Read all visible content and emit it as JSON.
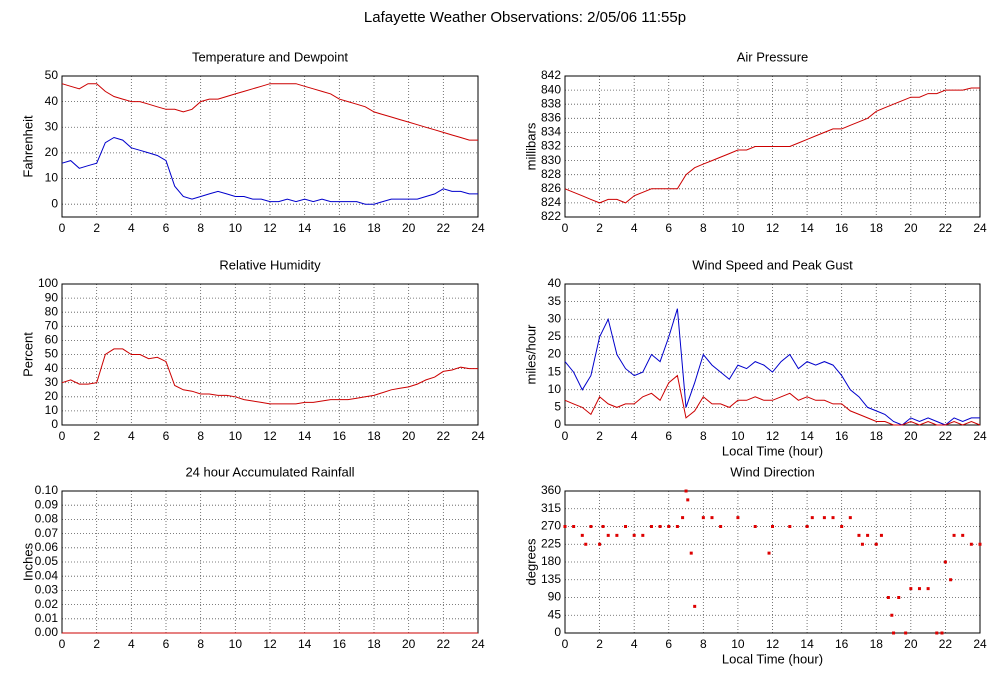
{
  "title": "Lafayette Weather Observations: 2/05/06 11:55p",
  "chart_data": [
    {
      "type": "line",
      "title": "Temperature and Dewpoint",
      "y_label": "Fahrenheit",
      "x": [
        0,
        0.5,
        1,
        1.5,
        2,
        2.5,
        3,
        3.5,
        4,
        4.5,
        5,
        5.5,
        6,
        6.5,
        7,
        7.5,
        8,
        8.5,
        9,
        9.5,
        10,
        10.5,
        11,
        11.5,
        12,
        12.5,
        13,
        13.5,
        14,
        14.5,
        15,
        15.5,
        16,
        16.5,
        17,
        17.5,
        18,
        18.5,
        19,
        19.5,
        20,
        20.5,
        21,
        21.5,
        22,
        22.5,
        23,
        23.5,
        24
      ],
      "series": [
        {
          "color": "#cc0000",
          "values": [
            47,
            46,
            45,
            47,
            47,
            44,
            42,
            41,
            40,
            40,
            39,
            38,
            37,
            37,
            36,
            37,
            40,
            41,
            41,
            42,
            43,
            44,
            45,
            46,
            47,
            47,
            47,
            47,
            46,
            45,
            44,
            43,
            41,
            40,
            39,
            38,
            36,
            35,
            34,
            33,
            32,
            31,
            30,
            29,
            28,
            27,
            26,
            25,
            25
          ]
        },
        {
          "color": "#0000cc",
          "values": [
            16,
            17,
            14,
            15,
            16,
            24,
            26,
            25,
            22,
            21,
            20,
            19,
            17,
            7,
            3,
            2,
            3,
            4,
            5,
            4,
            3,
            3,
            2,
            2,
            1,
            1,
            2,
            1,
            2,
            1,
            2,
            1,
            1,
            1,
            1,
            0,
            0,
            1,
            2,
            2,
            2,
            2,
            3,
            4,
            6,
            5,
            5,
            4,
            4
          ]
        }
      ],
      "xlim": [
        0,
        24
      ],
      "xticks": [
        0,
        2,
        4,
        6,
        8,
        10,
        12,
        14,
        16,
        18,
        20,
        22,
        24
      ],
      "ylim": [
        -5,
        50
      ],
      "yticks": [
        0,
        10,
        20,
        30,
        40,
        50
      ],
      "grid": true
    },
    {
      "type": "line",
      "title": "Air Pressure",
      "y_label": "millibars",
      "x": [
        0,
        0.5,
        1,
        1.5,
        2,
        2.5,
        3,
        3.5,
        4,
        4.5,
        5,
        5.5,
        6,
        6.5,
        7,
        7.5,
        8,
        8.5,
        9,
        9.5,
        10,
        10.5,
        11,
        11.5,
        12,
        12.5,
        13,
        13.5,
        14,
        14.5,
        15,
        15.5,
        16,
        16.5,
        17,
        17.5,
        18,
        18.5,
        19,
        19.5,
        20,
        20.5,
        21,
        21.5,
        22,
        22.5,
        23,
        23.5,
        24
      ],
      "series": [
        {
          "color": "#cc0000",
          "values": [
            826,
            825.5,
            825,
            824.5,
            824,
            824.5,
            824.5,
            824,
            825,
            825.5,
            826,
            826,
            826,
            826,
            828,
            829,
            829.5,
            830,
            830.5,
            831,
            831.5,
            831.5,
            832,
            832,
            832,
            832,
            832,
            832.5,
            833,
            833.5,
            834,
            834.5,
            834.5,
            835,
            835.5,
            836,
            837,
            837.5,
            838,
            838.5,
            839,
            839,
            839.5,
            839.5,
            840,
            840,
            840,
            840.3,
            840.3
          ]
        }
      ],
      "xlim": [
        0,
        24
      ],
      "xticks": [
        0,
        2,
        4,
        6,
        8,
        10,
        12,
        14,
        16,
        18,
        20,
        22,
        24
      ],
      "ylim": [
        822,
        842
      ],
      "yticks": [
        822,
        824,
        826,
        828,
        830,
        832,
        834,
        836,
        838,
        840,
        842
      ],
      "grid": true
    },
    {
      "type": "line",
      "title": "Relative Humidity",
      "y_label": "Percent",
      "x": [
        0,
        0.5,
        1,
        1.5,
        2,
        2.5,
        3,
        3.5,
        4,
        4.5,
        5,
        5.5,
        6,
        6.5,
        7,
        7.5,
        8,
        8.5,
        9,
        9.5,
        10,
        10.5,
        11,
        11.5,
        12,
        12.5,
        13,
        13.5,
        14,
        14.5,
        15,
        15.5,
        16,
        16.5,
        17,
        17.5,
        18,
        18.5,
        19,
        19.5,
        20,
        20.5,
        21,
        21.5,
        22,
        22.5,
        23,
        23.5,
        24
      ],
      "series": [
        {
          "color": "#cc0000",
          "values": [
            30,
            32,
            29,
            29,
            30,
            50,
            54,
            54,
            50,
            50,
            47,
            48,
            45,
            28,
            25,
            24,
            22,
            22,
            21,
            21,
            20,
            18,
            17,
            16,
            15,
            15,
            15,
            15,
            16,
            16,
            17,
            18,
            18,
            18,
            19,
            20,
            21,
            23,
            25,
            26,
            27,
            29,
            32,
            34,
            38,
            39,
            41,
            40,
            40
          ]
        }
      ],
      "xlim": [
        0,
        24
      ],
      "xticks": [
        0,
        2,
        4,
        6,
        8,
        10,
        12,
        14,
        16,
        18,
        20,
        22,
        24
      ],
      "ylim": [
        0,
        100
      ],
      "yticks": [
        0,
        10,
        20,
        30,
        40,
        50,
        60,
        70,
        80,
        90,
        100
      ],
      "grid": true
    },
    {
      "type": "line",
      "title": "Wind Speed and Peak Gust",
      "y_label": "miles/hour",
      "x_label": "Local Time (hour)",
      "x": [
        0,
        0.5,
        1,
        1.5,
        2,
        2.5,
        3,
        3.5,
        4,
        4.5,
        5,
        5.5,
        6,
        6.5,
        7,
        7.5,
        8,
        8.5,
        9,
        9.5,
        10,
        10.5,
        11,
        11.5,
        12,
        12.5,
        13,
        13.5,
        14,
        14.5,
        15,
        15.5,
        16,
        16.5,
        17,
        17.5,
        18,
        18.5,
        19,
        19.5,
        20,
        20.5,
        21,
        21.5,
        22,
        22.5,
        23,
        23.5,
        24
      ],
      "series": [
        {
          "color": "#0000cc",
          "values": [
            18,
            15,
            10,
            14,
            25,
            30,
            20,
            16,
            14,
            15,
            20,
            18,
            25,
            33,
            5,
            12,
            20,
            17,
            15,
            13,
            17,
            16,
            18,
            17,
            15,
            18,
            20,
            16,
            18,
            17,
            18,
            17,
            14,
            10,
            8,
            5,
            4,
            3,
            1,
            0,
            2,
            1,
            2,
            1,
            0,
            2,
            1,
            2,
            2
          ]
        },
        {
          "color": "#cc0000",
          "values": [
            7,
            6,
            5,
            3,
            8,
            6,
            5,
            6,
            6,
            8,
            9,
            7,
            12,
            14,
            2,
            4,
            8,
            6,
            6,
            5,
            7,
            7,
            8,
            7,
            7,
            8,
            9,
            7,
            8,
            7,
            7,
            6,
            6,
            4,
            3,
            2,
            1,
            1,
            0,
            0,
            1,
            0,
            1,
            0,
            0,
            1,
            0,
            1,
            0
          ]
        }
      ],
      "xlim": [
        0,
        24
      ],
      "xticks": [
        0,
        2,
        4,
        6,
        8,
        10,
        12,
        14,
        16,
        18,
        20,
        22,
        24
      ],
      "ylim": [
        0,
        40
      ],
      "yticks": [
        0,
        5,
        10,
        15,
        20,
        25,
        30,
        35,
        40
      ],
      "grid": true
    },
    {
      "type": "line",
      "title": "24 hour Accumulated Rainfall",
      "y_label": "Inches",
      "x": [
        0,
        24
      ],
      "series": [
        {
          "color": "#cc0000",
          "values": [
            0,
            0
          ]
        }
      ],
      "xlim": [
        0,
        24
      ],
      "xticks": [
        0,
        2,
        4,
        6,
        8,
        10,
        12,
        14,
        16,
        18,
        20,
        22,
        24
      ],
      "ylim": [
        0,
        0.1
      ],
      "yticks": [
        {
          "value": 0,
          "label": "0.00"
        },
        {
          "value": 0.01,
          "label": "0.01"
        },
        {
          "value": 0.02,
          "label": "0.02"
        },
        {
          "value": 0.03,
          "label": "0.03"
        },
        {
          "value": 0.04,
          "label": "0.04"
        },
        {
          "value": 0.05,
          "label": "0.05"
        },
        {
          "value": 0.06,
          "label": "0.06"
        },
        {
          "value": 0.07,
          "label": "0.07"
        },
        {
          "value": 0.08,
          "label": "0.08"
        },
        {
          "value": 0.09,
          "label": "0.09"
        },
        {
          "value": 0.1,
          "label": "0.10"
        }
      ],
      "grid": true
    },
    {
      "type": "scatter",
      "title": "Wind Direction",
      "y_label": "degrees",
      "x_label": "Local Time (hour)",
      "x": [
        0,
        0.5,
        1,
        1.2,
        1.5,
        2,
        2.2,
        2.5,
        3,
        3.5,
        4,
        4.5,
        5,
        5.5,
        6,
        6.5,
        6.8,
        7,
        7.1,
        7.3,
        7.5,
        8,
        8.5,
        9,
        10,
        11,
        11.8,
        12,
        13,
        14,
        14.3,
        15,
        15.5,
        16,
        16.5,
        17,
        17.2,
        17.5,
        18,
        18.3,
        18.7,
        18.9,
        19,
        19.3,
        19.7,
        20,
        20.5,
        21,
        21.5,
        21.8,
        22,
        22.3,
        22.5,
        23,
        23.5,
        24
      ],
      "series": [
        {
          "color": "#dd0000",
          "values": [
            270,
            270,
            247.5,
            225,
            270,
            225,
            270,
            247.5,
            247.5,
            270,
            247.5,
            247.5,
            270,
            270,
            270,
            270,
            292.5,
            360,
            337.5,
            202.5,
            67.5,
            292.5,
            292.5,
            270,
            292.5,
            270,
            202.5,
            270,
            270,
            270,
            292.5,
            292.5,
            292.5,
            270,
            292.5,
            247.5,
            225,
            247.5,
            225,
            247.5,
            90,
            45,
            0,
            90,
            0,
            112.5,
            112.5,
            112.5,
            0,
            0,
            180,
            135,
            247.5,
            247.5,
            225,
            225
          ]
        }
      ],
      "xlim": [
        0,
        24
      ],
      "xticks": [
        0,
        2,
        4,
        6,
        8,
        10,
        12,
        14,
        16,
        18,
        20,
        22,
        24
      ],
      "ylim": [
        0,
        360
      ],
      "yticks": [
        0,
        45,
        90,
        135,
        180,
        225,
        270,
        315,
        360
      ],
      "grid": true
    }
  ]
}
